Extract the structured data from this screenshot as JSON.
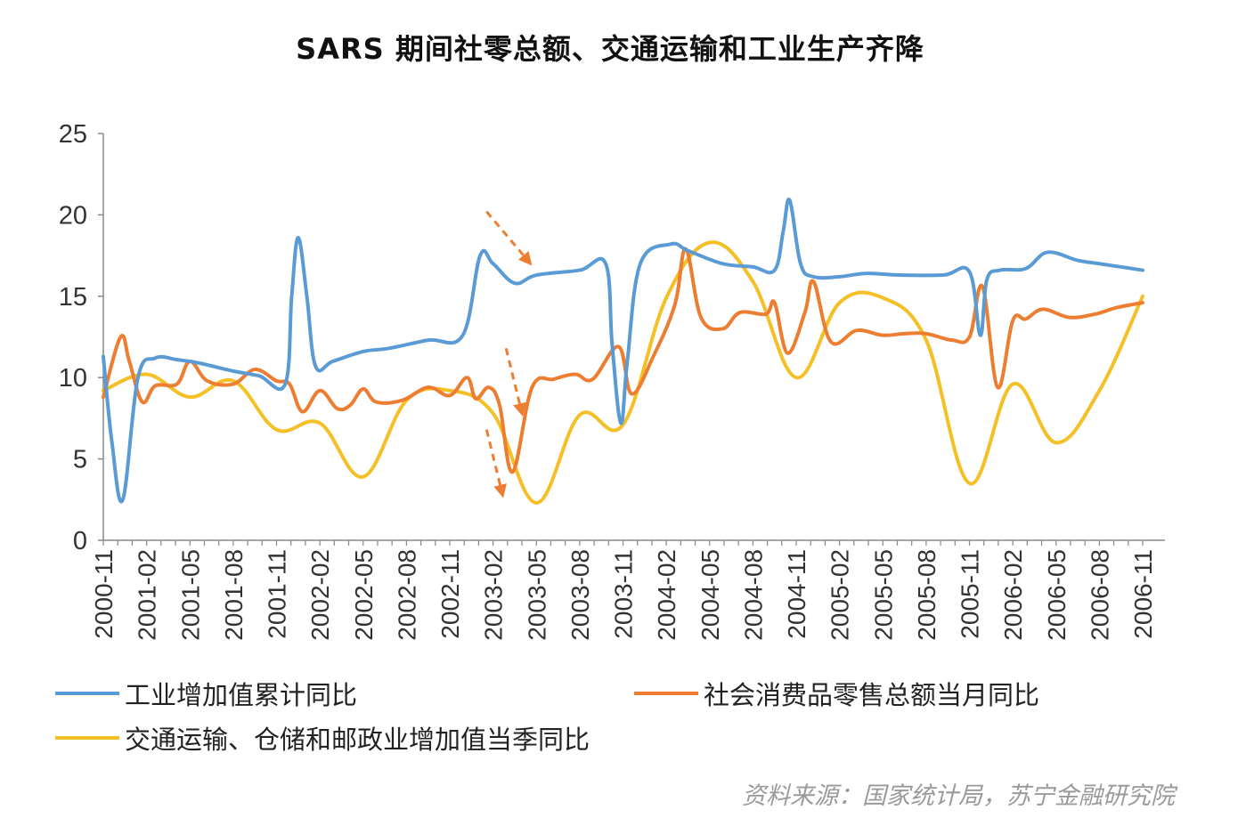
{
  "chart_data": {
    "type": "line",
    "title": "SARS 期间社零总额、交通运输和工业生产齐降",
    "ylim": [
      0,
      25
    ],
    "yticks": [
      0,
      5,
      10,
      15,
      20,
      25
    ],
    "x_labels": [
      "2000-11",
      "2001-02",
      "2001-05",
      "2001-08",
      "2001-11",
      "2002-02",
      "2002-05",
      "2002-08",
      "2002-11",
      "2003-02",
      "2003-05",
      "2003-08",
      "2003-11",
      "2004-02",
      "2004-05",
      "2004-08",
      "2004-11",
      "2005-02",
      "2005-05",
      "2005-08",
      "2005-11",
      "2006-02",
      "2006-05",
      "2006-08",
      "2006-11"
    ],
    "series": [
      {
        "name": "工业增加值累计同比",
        "color": "#5b9bd5",
        "points": [
          [
            0,
            11.3
          ],
          [
            0.2,
            6
          ],
          [
            0.45,
            2.5
          ],
          [
            0.8,
            10
          ],
          [
            1.2,
            11.2
          ],
          [
            1.7,
            11.1
          ],
          [
            2.2,
            10.9
          ],
          [
            3,
            10.4
          ],
          [
            3.6,
            10.1
          ],
          [
            4.2,
            9.6
          ],
          [
            4.35,
            15
          ],
          [
            4.5,
            18.6
          ],
          [
            4.7,
            15
          ],
          [
            4.9,
            10.7
          ],
          [
            5.3,
            11.0
          ],
          [
            6,
            11.6
          ],
          [
            6.6,
            11.8
          ],
          [
            7.5,
            12.3
          ],
          [
            8.3,
            12.6
          ],
          [
            8.7,
            17.5
          ],
          [
            9,
            17
          ],
          [
            9.5,
            15.8
          ],
          [
            10,
            16.3
          ],
          [
            11,
            16.6
          ],
          [
            11.6,
            17.0
          ],
          [
            11.75,
            12
          ],
          [
            11.95,
            7.2
          ],
          [
            12.1,
            11
          ],
          [
            12.4,
            17.0
          ],
          [
            13.1,
            18.2
          ],
          [
            13.5,
            17.8
          ],
          [
            14.3,
            17.0
          ],
          [
            15,
            16.8
          ],
          [
            15.5,
            16.6
          ],
          [
            15.7,
            19
          ],
          [
            15.85,
            20.9
          ],
          [
            16.1,
            17
          ],
          [
            16.4,
            16.2
          ],
          [
            17,
            16.2
          ],
          [
            17.6,
            16.4
          ],
          [
            18.4,
            16.3
          ],
          [
            19.4,
            16.3
          ],
          [
            20,
            16.5
          ],
          [
            20.25,
            12.6
          ],
          [
            20.4,
            16
          ],
          [
            20.7,
            16.6
          ],
          [
            21.3,
            16.7
          ],
          [
            21.8,
            17.7
          ],
          [
            22.5,
            17.2
          ],
          [
            23,
            17.0
          ],
          [
            24,
            16.6
          ]
        ]
      },
      {
        "name": "社会消费品零售总额当月同比",
        "color": "#ed7d31",
        "points": [
          [
            0,
            8.8
          ],
          [
            0.4,
            12.5
          ],
          [
            0.6,
            11
          ],
          [
            0.9,
            8.5
          ],
          [
            1.2,
            9.5
          ],
          [
            1.7,
            9.6
          ],
          [
            2,
            11.0
          ],
          [
            2.4,
            9.8
          ],
          [
            3,
            9.6
          ],
          [
            3.5,
            10.5
          ],
          [
            4,
            9.8
          ],
          [
            4.3,
            9.6
          ],
          [
            4.6,
            7.9
          ],
          [
            5,
            9.2
          ],
          [
            5.4,
            8.1
          ],
          [
            5.7,
            8.3
          ],
          [
            6,
            9.3
          ],
          [
            6.3,
            8.5
          ],
          [
            6.9,
            8.6
          ],
          [
            7.5,
            9.4
          ],
          [
            8,
            8.9
          ],
          [
            8.4,
            10.0
          ],
          [
            8.6,
            8.7
          ],
          [
            8.9,
            9.4
          ],
          [
            9.15,
            8.3
          ],
          [
            9.45,
            4.2
          ],
          [
            9.9,
            9.4
          ],
          [
            10.4,
            9.9
          ],
          [
            10.9,
            10.2
          ],
          [
            11.3,
            9.9
          ],
          [
            11.9,
            11.9
          ],
          [
            12.2,
            9.0
          ],
          [
            12.7,
            11.3
          ],
          [
            13.2,
            14.5
          ],
          [
            13.45,
            17.9
          ],
          [
            13.8,
            13.7
          ],
          [
            14.3,
            13.0
          ],
          [
            14.7,
            14.0
          ],
          [
            15.3,
            13.9
          ],
          [
            15.5,
            14.6
          ],
          [
            15.8,
            11.5
          ],
          [
            16.2,
            14.0
          ],
          [
            16.4,
            15.9
          ],
          [
            16.8,
            12.2
          ],
          [
            17.4,
            12.9
          ],
          [
            18,
            12.6
          ],
          [
            18.5,
            12.7
          ],
          [
            19,
            12.7
          ],
          [
            19.6,
            12.3
          ],
          [
            20,
            12.5
          ],
          [
            20.3,
            15.6
          ],
          [
            20.65,
            9.4
          ],
          [
            21,
            13.5
          ],
          [
            21.3,
            13.6
          ],
          [
            21.7,
            14.2
          ],
          [
            22.3,
            13.7
          ],
          [
            22.9,
            13.9
          ],
          [
            23.4,
            14.3
          ],
          [
            24,
            14.6
          ]
        ]
      },
      {
        "name": "交通运输、仓储和邮政业增加值当季同比",
        "color": "#f5bf26",
        "points": [
          [
            0,
            9.2
          ],
          [
            1,
            10.2
          ],
          [
            2,
            8.8
          ],
          [
            3,
            9.8
          ],
          [
            4,
            6.8
          ],
          [
            5,
            7.2
          ],
          [
            6,
            3.9
          ],
          [
            7,
            8.6
          ],
          [
            8,
            9.2
          ],
          [
            9,
            7.8
          ],
          [
            10,
            2.3
          ],
          [
            11,
            7.7
          ],
          [
            12,
            7.1
          ],
          [
            13,
            14.9
          ],
          [
            14,
            18.3
          ],
          [
            15,
            15.9
          ],
          [
            16,
            10.0
          ],
          [
            17,
            14.6
          ],
          [
            18,
            14.9
          ],
          [
            19,
            12.3
          ],
          [
            20,
            3.5
          ],
          [
            21,
            9.6
          ],
          [
            22,
            6.0
          ],
          [
            23,
            9.2
          ],
          [
            24,
            15.0
          ]
        ]
      }
    ],
    "annotations": [
      "arrow-down-2003-03-industry",
      "arrow-down-2003-04-retail",
      "arrow-down-2003-03-transport"
    ]
  },
  "legend": {
    "item1": "工业增加值累计同比",
    "item2": "社会消费品零售总额当月同比",
    "item3": "交通运输、仓储和邮政业增加值当季同比"
  },
  "source": "资料来源：国家统计局，苏宁金融研究院"
}
